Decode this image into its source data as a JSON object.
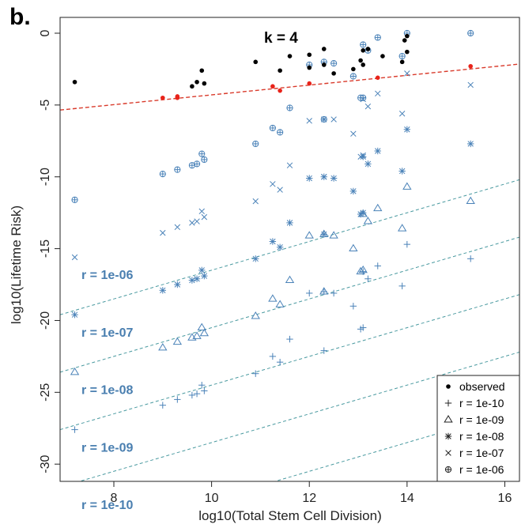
{
  "panel_label": "b.",
  "chart_data": {
    "type": "scatter",
    "xlabel": "log10(Total Stem Cell Division)",
    "ylabel": "log10(Lifetime Risk)",
    "xlim": [
      6.9,
      16.3
    ],
    "ylim": [
      -31.2,
      1.1
    ],
    "xticks": [
      8,
      10,
      12,
      14,
      16
    ],
    "yticks": [
      0,
      -5,
      -10,
      -15,
      -20,
      -25,
      -30
    ],
    "annotation": "k = 4",
    "legend_position": "bottom-right",
    "colors": {
      "observed": "#000000",
      "highlight": "#e8231a",
      "model": "#4a82b8",
      "fit": "#d93a2b",
      "guide": "#4a9aa0",
      "r_label": "#4a7fb0"
    },
    "observed_black": [
      [
        7.2,
        -3.4
      ],
      [
        9.6,
        -3.7
      ],
      [
        9.7,
        -3.4
      ],
      [
        9.8,
        -2.6
      ],
      [
        9.85,
        -3.5
      ],
      [
        10.9,
        -2.0
      ],
      [
        11.4,
        -2.6
      ],
      [
        11.6,
        -1.6
      ],
      [
        12.0,
        -1.5
      ],
      [
        12.0,
        -2.4
      ],
      [
        12.3,
        -1.1
      ],
      [
        12.3,
        -2.2
      ],
      [
        12.5,
        -2.8
      ],
      [
        12.9,
        -2.5
      ],
      [
        13.05,
        -1.9
      ],
      [
        13.1,
        -1.2
      ],
      [
        13.1,
        -2.2
      ],
      [
        13.2,
        -1.1
      ],
      [
        13.5,
        -1.6
      ],
      [
        13.9,
        -2.0
      ],
      [
        13.95,
        -0.5
      ],
      [
        14.0,
        -0.2
      ],
      [
        14.0,
        -1.3
      ]
    ],
    "observed_red": [
      [
        9.0,
        -4.5
      ],
      [
        9.3,
        -4.4
      ],
      [
        9.3,
        -4.5
      ],
      [
        11.25,
        -3.7
      ],
      [
        11.4,
        -4.0
      ],
      [
        12.0,
        -3.5
      ],
      [
        13.4,
        -3.1
      ],
      [
        15.3,
        -2.3
      ]
    ],
    "regression": {
      "x1": 6.9,
      "y1": -5.35,
      "x2": 16.3,
      "y2": -2.15
    },
    "series": [
      {
        "name": "r = 1e-10",
        "marker": "plus",
        "label": "r = 1e-10",
        "intercept": -42.5,
        "points": [
          [
            7.2,
            -27.6
          ],
          [
            9.0,
            -25.9
          ],
          [
            9.3,
            -25.5
          ],
          [
            9.6,
            -25.2
          ],
          [
            9.7,
            -25.1
          ],
          [
            9.8,
            -24.5
          ],
          [
            9.85,
            -24.9
          ],
          [
            10.9,
            -23.7
          ],
          [
            11.25,
            -22.5
          ],
          [
            11.4,
            -22.9
          ],
          [
            11.6,
            -21.3
          ],
          [
            12.0,
            -18.1
          ],
          [
            12.3,
            -22.1
          ],
          [
            12.3,
            -18.0
          ],
          [
            12.5,
            -18.1
          ],
          [
            12.9,
            -19.0
          ],
          [
            13.05,
            -20.6
          ],
          [
            13.1,
            -20.5
          ],
          [
            13.1,
            -16.6
          ],
          [
            13.2,
            -17.1
          ],
          [
            13.4,
            -16.2
          ],
          [
            13.9,
            -17.6
          ],
          [
            14.0,
            -14.7
          ],
          [
            15.3,
            -15.7
          ]
        ]
      },
      {
        "name": "r = 1e-09",
        "marker": "triangle",
        "label": "r = 1e-09",
        "intercept": -38.5,
        "points": [
          [
            7.2,
            -23.6
          ],
          [
            9.0,
            -21.9
          ],
          [
            9.3,
            -21.5
          ],
          [
            9.6,
            -21.2
          ],
          [
            9.7,
            -21.1
          ],
          [
            9.8,
            -20.5
          ],
          [
            9.85,
            -20.9
          ],
          [
            10.9,
            -19.7
          ],
          [
            11.25,
            -18.5
          ],
          [
            11.4,
            -18.9
          ],
          [
            11.6,
            -17.2
          ],
          [
            12.0,
            -14.1
          ],
          [
            12.3,
            -18.0
          ],
          [
            12.3,
            -14.0
          ],
          [
            12.5,
            -14.1
          ],
          [
            12.9,
            -15.0
          ],
          [
            13.05,
            -16.6
          ],
          [
            13.1,
            -16.5
          ],
          [
            13.1,
            -12.6
          ],
          [
            13.2,
            -13.1
          ],
          [
            13.4,
            -12.2
          ],
          [
            13.9,
            -13.6
          ],
          [
            14.0,
            -10.7
          ],
          [
            15.3,
            -11.7
          ]
        ]
      },
      {
        "name": "r = 1e-08",
        "marker": "asterisk",
        "label": "r = 1e-08",
        "intercept": -34.5,
        "points": [
          [
            7.2,
            -19.6
          ],
          [
            9.0,
            -17.9
          ],
          [
            9.3,
            -17.5
          ],
          [
            9.6,
            -17.2
          ],
          [
            9.7,
            -17.1
          ],
          [
            9.8,
            -16.5
          ],
          [
            9.85,
            -16.9
          ],
          [
            10.9,
            -15.7
          ],
          [
            11.25,
            -14.5
          ],
          [
            11.4,
            -14.9
          ],
          [
            11.6,
            -13.2
          ],
          [
            12.0,
            -10.1
          ],
          [
            12.3,
            -14.0
          ],
          [
            12.3,
            -10.0
          ],
          [
            12.5,
            -10.1
          ],
          [
            12.9,
            -11.0
          ],
          [
            13.05,
            -12.6
          ],
          [
            13.1,
            -12.5
          ],
          [
            13.1,
            -8.6
          ],
          [
            13.2,
            -9.1
          ],
          [
            13.4,
            -8.2
          ],
          [
            13.9,
            -9.6
          ],
          [
            14.0,
            -6.7
          ],
          [
            15.3,
            -7.7
          ]
        ]
      },
      {
        "name": "r = 1e-07",
        "marker": "cross",
        "label": "r = 1e-07",
        "intercept": -30.5,
        "points": [
          [
            7.2,
            -15.6
          ],
          [
            9.0,
            -13.9
          ],
          [
            9.3,
            -13.5
          ],
          [
            9.6,
            -13.2
          ],
          [
            9.7,
            -13.1
          ],
          [
            9.8,
            -12.4
          ],
          [
            9.85,
            -12.8
          ],
          [
            10.9,
            -11.7
          ],
          [
            11.25,
            -10.5
          ],
          [
            11.4,
            -10.9
          ],
          [
            11.6,
            -9.2
          ],
          [
            12.0,
            -6.1
          ],
          [
            12.3,
            -10.0
          ],
          [
            12.3,
            -6.0
          ],
          [
            12.5,
            -6.0
          ],
          [
            12.9,
            -7.0
          ],
          [
            13.05,
            -8.6
          ],
          [
            13.1,
            -8.5
          ],
          [
            13.1,
            -4.6
          ],
          [
            13.2,
            -5.1
          ],
          [
            13.4,
            -4.2
          ],
          [
            13.9,
            -5.6
          ],
          [
            14.0,
            -2.8
          ],
          [
            15.3,
            -3.6
          ]
        ]
      },
      {
        "name": "r = 1e-06",
        "marker": "circleplus",
        "label": "r = 1e-06",
        "intercept": -26.5,
        "points": [
          [
            7.2,
            -11.6
          ],
          [
            9.0,
            -9.8
          ],
          [
            9.3,
            -9.5
          ],
          [
            9.6,
            -9.2
          ],
          [
            9.7,
            -9.1
          ],
          [
            9.8,
            -8.4
          ],
          [
            9.85,
            -8.8
          ],
          [
            10.9,
            -7.7
          ],
          [
            11.25,
            -6.6
          ],
          [
            11.4,
            -6.9
          ],
          [
            11.6,
            -5.2
          ],
          [
            12.0,
            -2.2
          ],
          [
            12.3,
            -6.0
          ],
          [
            12.3,
            -2.0
          ],
          [
            12.5,
            -2.1
          ],
          [
            12.9,
            -3.0
          ],
          [
            13.05,
            -4.5
          ],
          [
            13.1,
            -4.5
          ],
          [
            13.1,
            -0.8
          ],
          [
            13.2,
            -1.2
          ],
          [
            13.4,
            -0.3
          ],
          [
            13.9,
            -1.6
          ],
          [
            14.0,
            0.0
          ],
          [
            15.3,
            0.0
          ]
        ]
      }
    ],
    "legend": [
      {
        "marker": "dot",
        "label": "observed"
      },
      {
        "marker": "plus",
        "label": "r = 1e-10"
      },
      {
        "marker": "triangle",
        "label": "r = 1e-09"
      },
      {
        "marker": "asterisk",
        "label": "r = 1e-08"
      },
      {
        "marker": "cross",
        "label": "r = 1e-07"
      },
      {
        "marker": "circleplus",
        "label": "r = 1e-06"
      }
    ]
  }
}
